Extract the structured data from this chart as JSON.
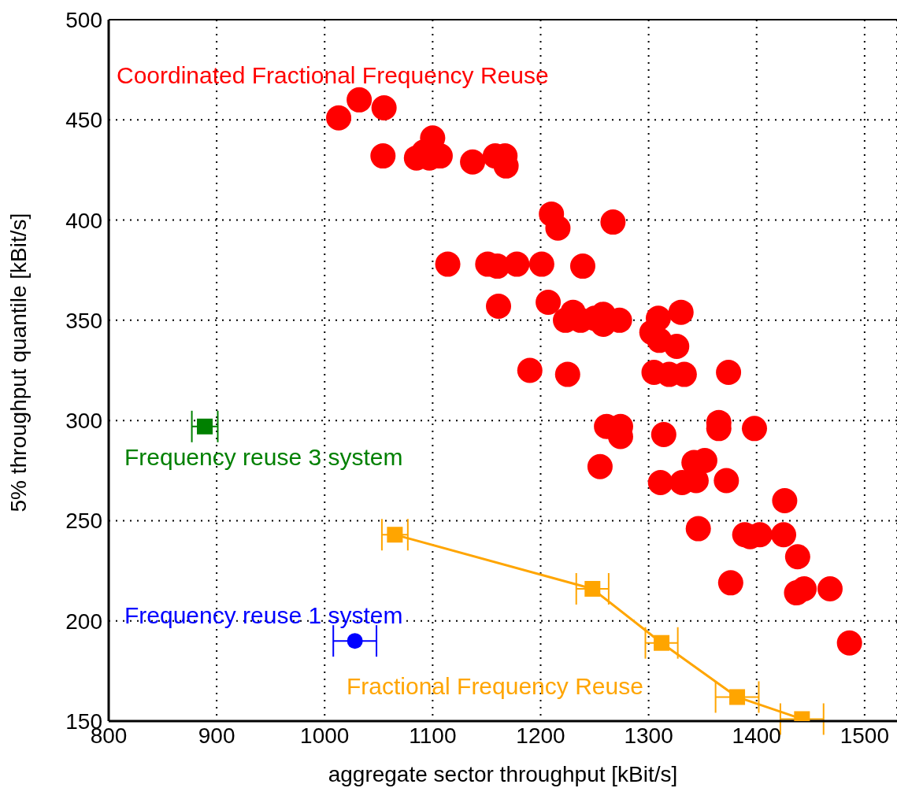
{
  "chart_data": {
    "type": "scatter",
    "xlabel": "aggregate sector throughput [kBit/s]",
    "ylabel": "5% throughput quantile [kBit/s]",
    "xlim": [
      800,
      1530
    ],
    "xticks": [
      800,
      900,
      1000,
      1100,
      1200,
      1300,
      1400,
      1500
    ],
    "ylim": [
      150,
      500
    ],
    "yticks": [
      150,
      200,
      250,
      300,
      350,
      400,
      450,
      500
    ],
    "grid": true,
    "series": [
      {
        "name": "Coordinated Fractional Frequency Reuse",
        "marker": "circle",
        "color": "#ff0000",
        "x": [
          1013,
          1032,
          1055,
          1054,
          1085,
          1092,
          1100,
          1107,
          1097,
          1137,
          1158,
          1167,
          1168,
          1210,
          1216,
          1267,
          1114,
          1151,
          1160,
          1178,
          1201,
          1239,
          1161,
          1207,
          1223,
          1230,
          1237,
          1250,
          1258,
          1258,
          1273,
          1309,
          1330,
          1303,
          1310,
          1326,
          1190,
          1225,
          1305,
          1319,
          1333,
          1374,
          1261,
          1274,
          1274,
          1314,
          1365,
          1365,
          1398,
          1255,
          1342,
          1352,
          1311,
          1331,
          1344,
          1372,
          1426,
          1346,
          1389,
          1394,
          1403,
          1425,
          1438,
          1376,
          1437,
          1444,
          1468,
          1486
        ],
        "values": [
          451,
          460,
          456,
          432,
          431,
          434,
          441,
          432,
          431,
          429,
          432,
          432,
          427,
          403,
          396,
          399,
          378,
          378,
          377,
          378,
          378,
          377,
          357,
          359,
          350,
          354,
          350,
          351,
          348,
          353,
          350,
          351,
          354,
          344,
          340,
          337,
          325,
          323,
          324,
          323,
          323,
          324,
          297,
          297,
          292,
          293,
          299,
          296,
          296,
          277,
          279,
          280,
          269,
          269,
          270,
          270,
          260,
          246,
          243,
          242,
          243,
          243,
          232,
          219,
          214,
          216,
          216,
          189
        ]
      },
      {
        "name": "Fractional Frequency Reuse",
        "type": "line",
        "marker": "square",
        "color": "#ffa500",
        "x": [
          1065,
          1248,
          1312,
          1382,
          1442
        ],
        "values": [
          243,
          216,
          189,
          162,
          151
        ],
        "xerrors": [
          12,
          15,
          15,
          20,
          20
        ]
      },
      {
        "name": "Frequency reuse 3 system",
        "type": "scatter",
        "marker": "square",
        "color": "#008000",
        "x": [
          889
        ],
        "values": [
          297
        ],
        "xerrors": [
          12
        ]
      },
      {
        "name": "Frequency reuse 1 system",
        "type": "scatter",
        "marker": "circle",
        "color": "#0000ff",
        "x": [
          1028
        ],
        "values": [
          190
        ],
        "xerrors": [
          20
        ]
      }
    ]
  }
}
